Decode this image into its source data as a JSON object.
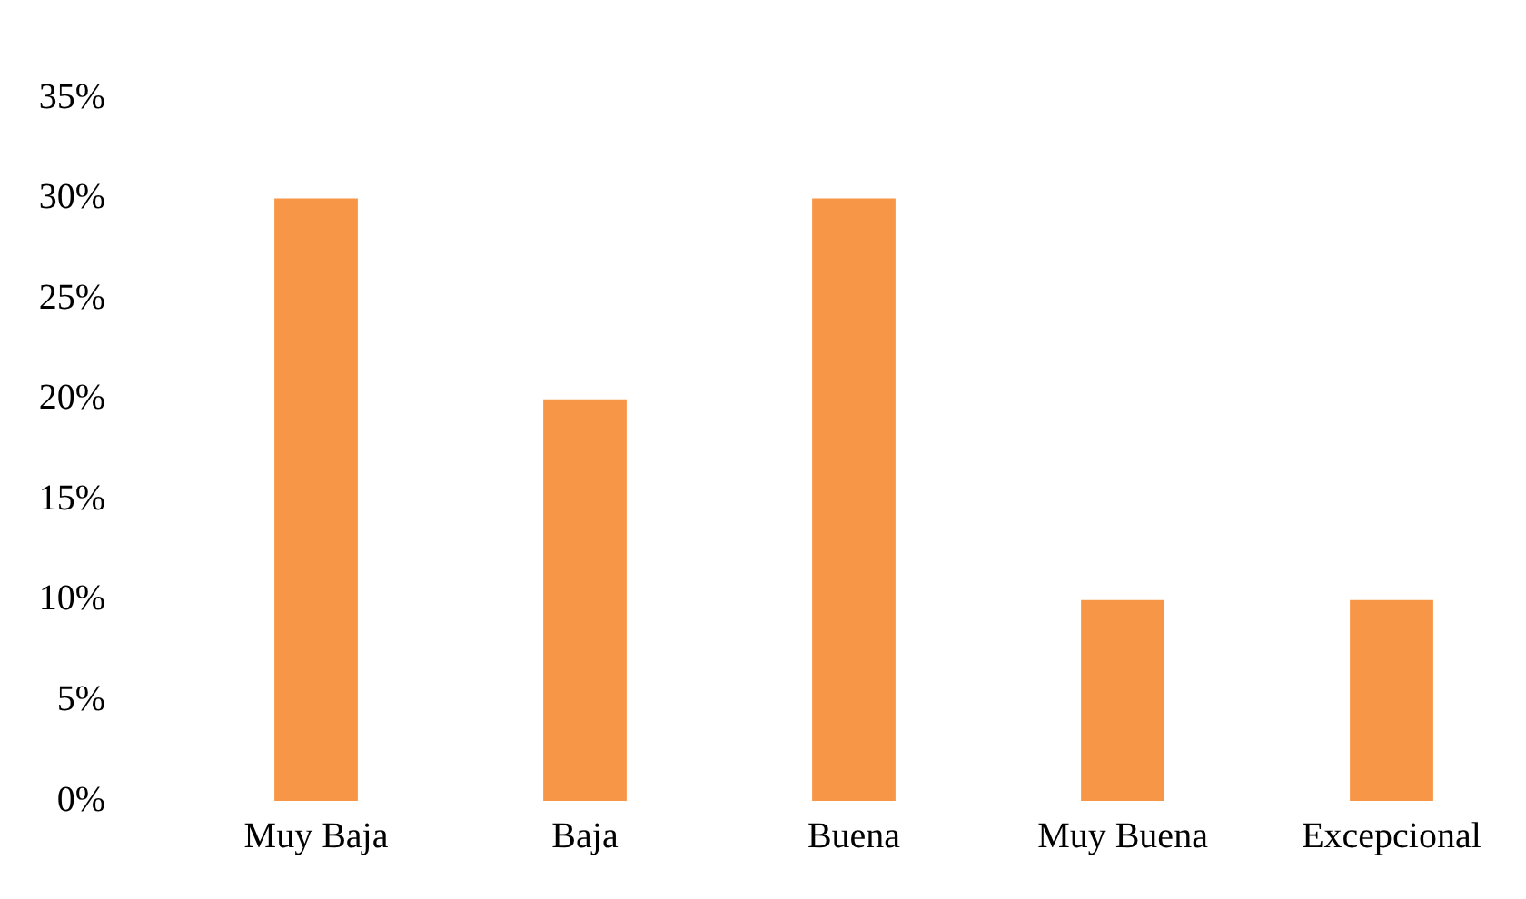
{
  "chart_data": {
    "type": "bar",
    "categories": [
      "Muy Baja",
      "Baja",
      "Buena",
      "Muy Buena",
      "Excepcional"
    ],
    "values": [
      30,
      20,
      30,
      10,
      10
    ],
    "color": "#f79646",
    "ylim": [
      0,
      35
    ],
    "yticks": [
      {
        "value": 0,
        "label": "0%"
      },
      {
        "value": 5,
        "label": "5%"
      },
      {
        "value": 10,
        "label": "10%"
      },
      {
        "value": 15,
        "label": "15%"
      },
      {
        "value": 20,
        "label": "20%"
      },
      {
        "value": 25,
        "label": "25%"
      },
      {
        "value": 30,
        "label": "30%"
      },
      {
        "value": 35,
        "label": "35%"
      }
    ],
    "grid": false,
    "legend": false
  }
}
